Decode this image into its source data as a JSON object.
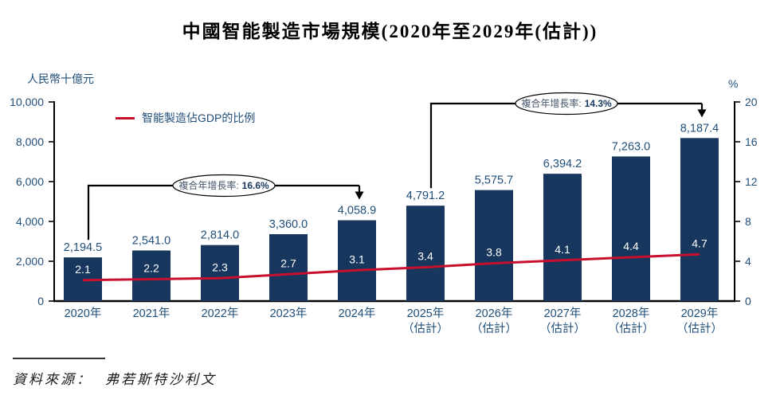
{
  "chart_data": {
    "type": "bar",
    "title": "中國智能製造市場規模(2020年至2029年(估計))",
    "left_axis": {
      "unit": "人民幣十億元",
      "min": 0,
      "max": 10000,
      "ticks": [
        "0",
        "2,000",
        "4,000",
        "6,000",
        "8,000",
        "10,000"
      ]
    },
    "right_axis": {
      "unit": "%",
      "min": 0,
      "max": 20,
      "ticks": [
        "0",
        "4",
        "8",
        "12",
        "16",
        "20"
      ]
    },
    "categories": [
      {
        "line1": "2020年",
        "line2": ""
      },
      {
        "line1": "2021年",
        "line2": ""
      },
      {
        "line1": "2022年",
        "line2": ""
      },
      {
        "line1": "2023年",
        "line2": ""
      },
      {
        "line1": "2024年",
        "line2": ""
      },
      {
        "line1": "2025年",
        "line2": "（估計）"
      },
      {
        "line1": "2026年",
        "line2": "（估計）"
      },
      {
        "line1": "2027年",
        "line2": "（估計）"
      },
      {
        "line1": "2028年",
        "line2": "（估計）"
      },
      {
        "line1": "2029年",
        "line2": "（估計）"
      }
    ],
    "series": [
      {
        "name": "智能製造市場規模",
        "type": "bar",
        "axis": "left",
        "color": "#17375E",
        "values": [
          2194.5,
          2541.0,
          2814.0,
          3360.0,
          4058.9,
          4791.2,
          5575.7,
          6394.2,
          7263.0,
          8187.4
        ],
        "labels": [
          "2,194.5",
          "2,541.0",
          "2,814.0",
          "3,360.0",
          "4,058.9",
          "4,791.2",
          "5,575.7",
          "6,394.2",
          "7,263.0",
          "8,187.4"
        ]
      },
      {
        "name": "智能製造佔GDP的比例",
        "type": "line",
        "axis": "right",
        "color": "#C8102E",
        "values": [
          2.1,
          2.2,
          2.3,
          2.7,
          3.1,
          3.4,
          3.8,
          4.1,
          4.4,
          4.7
        ],
        "labels": [
          "2.1",
          "2.2",
          "2.3",
          "2.7",
          "3.1",
          "3.4",
          "3.8",
          "4.1",
          "4.4",
          "4.7"
        ]
      }
    ],
    "legend": {
      "label": "智能製造佔GDP的比例",
      "color": "#C8102E",
      "position": "top-left"
    },
    "annotations": [
      {
        "label": "複合年增長率:",
        "value": "16.6%",
        "from_index": 0,
        "to_index": 4
      },
      {
        "label": "複合年增長率:",
        "value": "14.3%",
        "from_index": 5,
        "to_index": 9
      }
    ],
    "grid": false
  },
  "source": {
    "label": "資料來源：",
    "value": "弗若斯特沙利文"
  },
  "colors": {
    "bar": "#17375E",
    "line": "#C8102E",
    "axis_text": "#1F4E79",
    "axis_line": "#000000",
    "bar_label": "#1F4E79",
    "in_bar_label": "#FFFFFF",
    "annotation_label": "#44546A",
    "annotation_value": "#17375E"
  }
}
